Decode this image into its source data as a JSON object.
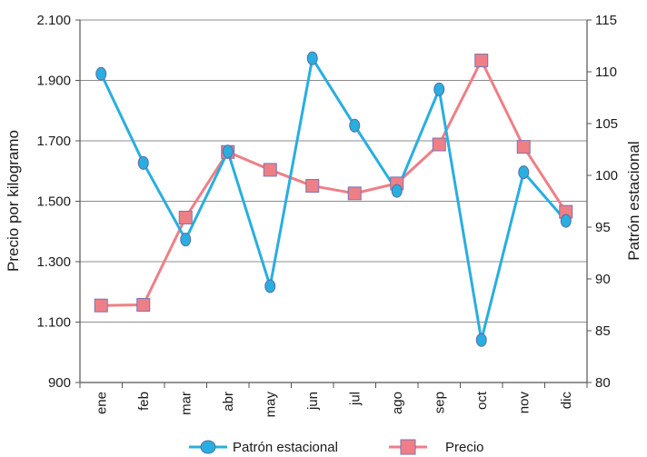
{
  "chart_data": {
    "type": "line",
    "categories": [
      "ene",
      "feb",
      "mar",
      "abr",
      "may",
      "jun",
      "jul",
      "ago",
      "sep",
      "oct",
      "nov",
      "dic"
    ],
    "series": [
      {
        "name": "Patrón estacional",
        "axis": "right",
        "color": "#29aee0",
        "marker": "circle",
        "values": [
          109.8,
          101.2,
          93.8,
          102.3,
          89.3,
          111.3,
          104.8,
          98.5,
          108.3,
          84.1,
          100.3,
          95.6
        ]
      },
      {
        "name": "Precio",
        "axis": "left",
        "color": "#ef7f86",
        "marker": "square",
        "values": [
          1155,
          1157,
          1446,
          1663,
          1604,
          1551,
          1526,
          1559,
          1688,
          1966,
          1680,
          1465
        ]
      }
    ],
    "ylabel": "Precio por kilogramo",
    "y2label": "Patrón estacional",
    "ylim": [
      900,
      2100
    ],
    "yticks": [
      "900",
      "1.100",
      "1.300",
      "1.500",
      "1.700",
      "1.900",
      "2.100"
    ],
    "y2lim": [
      80,
      115
    ],
    "y2ticks": [
      "80",
      "85",
      "90",
      "95",
      "100",
      "105",
      "110",
      "115"
    ],
    "grid": true,
    "legend": "bottom"
  }
}
